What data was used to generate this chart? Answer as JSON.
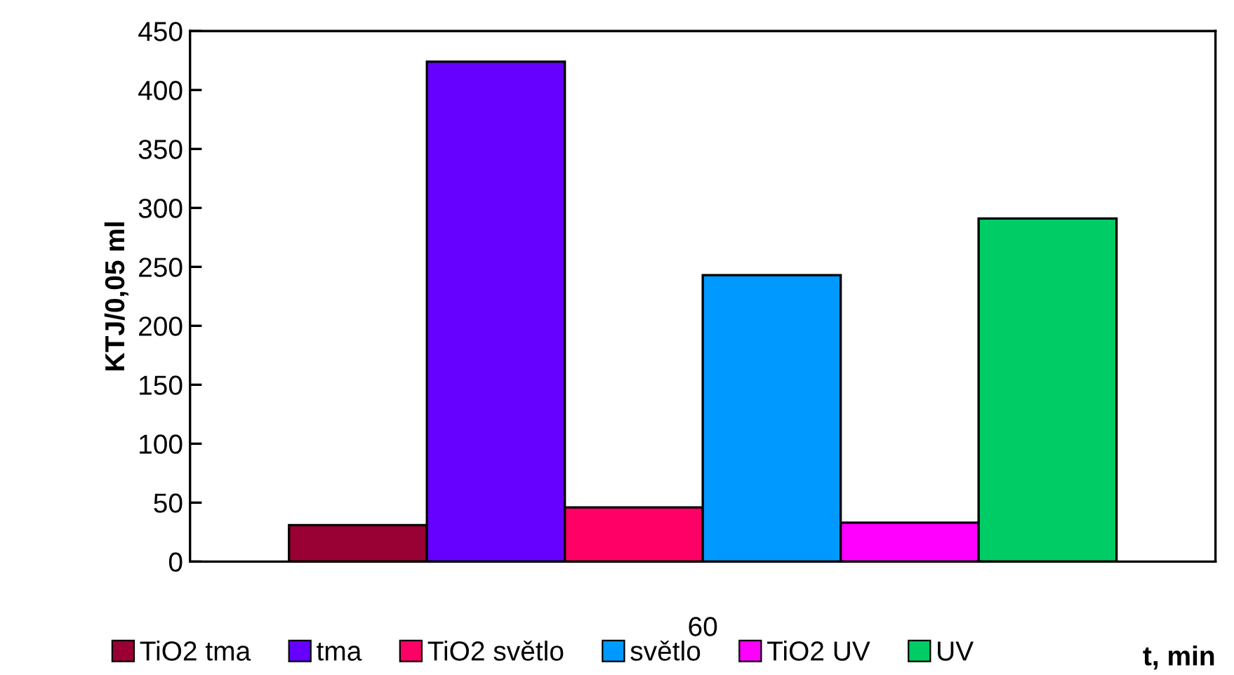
{
  "chart_data": {
    "type": "bar",
    "categories": [
      "60"
    ],
    "xlabel": "t, min",
    "ylabel": "KTJ/0,05 ml",
    "series": [
      {
        "name": "TiO2 tma",
        "color": "#990033",
        "values": [
          31
        ]
      },
      {
        "name": "tma",
        "color": "#6600ff",
        "values": [
          424
        ]
      },
      {
        "name": "TiO2 světlo",
        "color": "#ff0066",
        "values": [
          46
        ]
      },
      {
        "name": "světlo",
        "color": "#0099ff",
        "values": [
          243
        ]
      },
      {
        "name": "TiO2 UV",
        "color": "#ff00ff",
        "values": [
          33
        ]
      },
      {
        "name": "UV",
        "color": "#00cc66",
        "values": [
          291
        ]
      }
    ],
    "ylim": [
      0,
      450
    ],
    "yticks": [
      0,
      50,
      100,
      150,
      200,
      250,
      300,
      350,
      400,
      450
    ],
    "grid": false,
    "legend": "bottom"
  }
}
